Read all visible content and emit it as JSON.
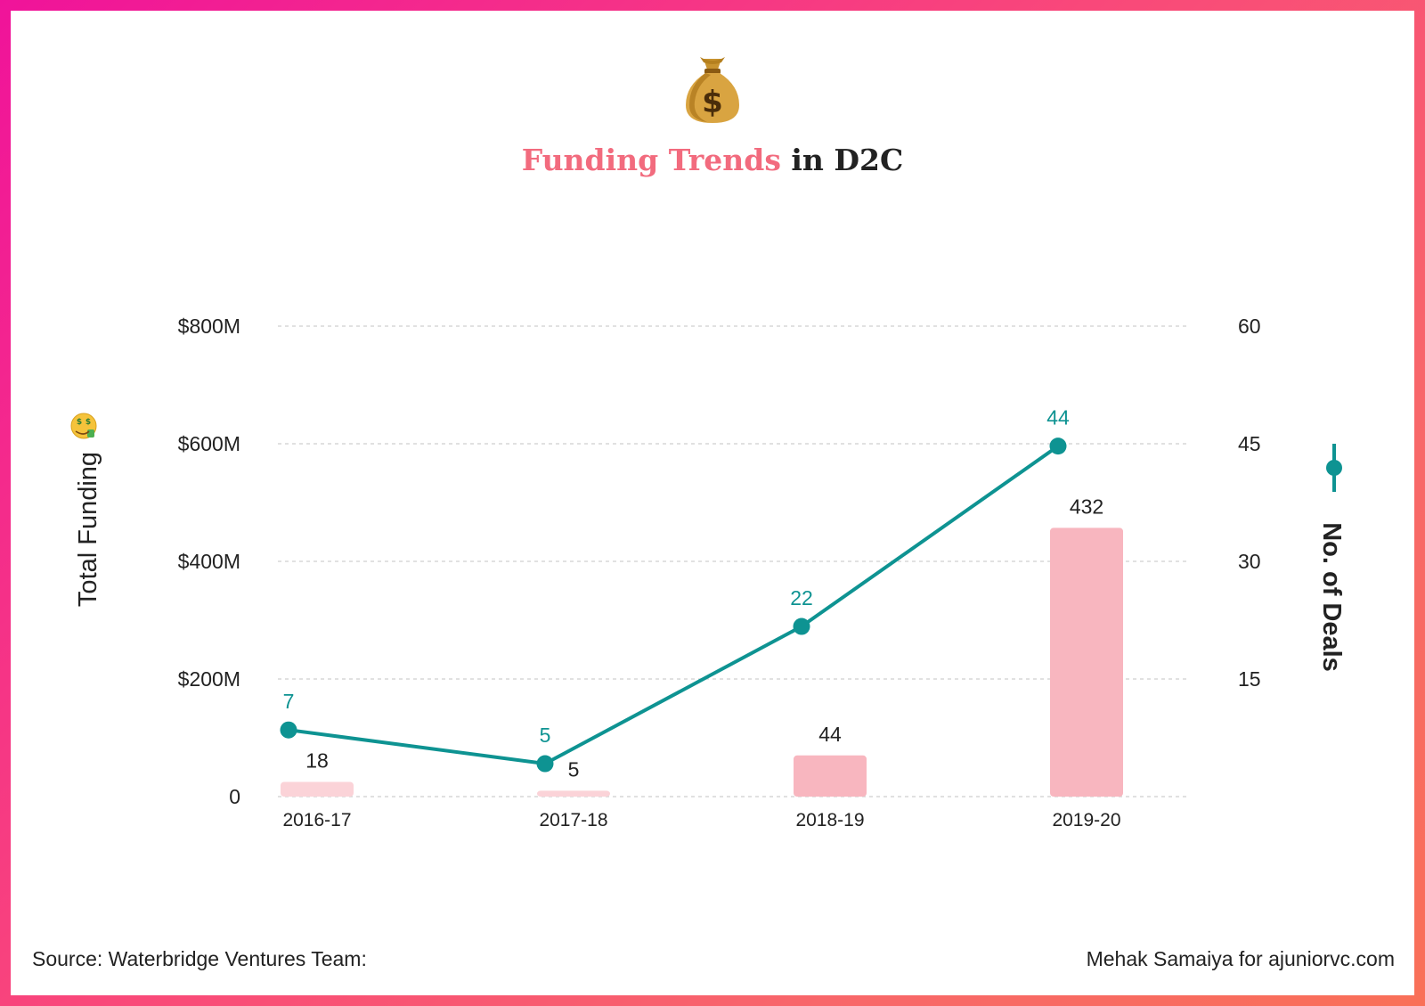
{
  "header": {
    "icon": "money-bag-icon",
    "title_highlight": "Funding Trends",
    "title_rest": " in D2C"
  },
  "colors": {
    "bar": "#f8b6bf",
    "bar_light": "#fbd3d8",
    "line": "#0e9392",
    "title_highlight": "#f26b7e"
  },
  "chart_data": {
    "type": "bar+line",
    "categories": [
      "2016-17",
      "2017-18",
      "2018-19",
      "2019-20"
    ],
    "series": [
      {
        "values": [
          18,
          5,
          44,
          432
        ],
        "labels": [
          "18",
          "5",
          "44",
          "432"
        ],
        "axis": "left",
        "chart": "bar"
      },
      {
        "name": "No. of Deals",
        "values": [
          7,
          5,
          22,
          44
        ],
        "labels": [
          "7",
          "5",
          "22",
          "44"
        ],
        "axis": "right",
        "chart": "line"
      }
    ],
    "bar_plotted_values_est": [
      25,
      10,
      70,
      457
    ],
    "line_plotted_values_est": [
      8.5,
      4.2,
      21.7,
      44.7
    ],
    "y_left": {
      "label": "Total Funding",
      "label_icon": "money-mouth-face-icon",
      "ticks": [
        "0",
        "$200M",
        "$400M",
        "$600M",
        "$800M"
      ],
      "range": [
        0,
        800
      ]
    },
    "y_right": {
      "label": "No. of Deals",
      "ticks": [
        "15",
        "30",
        "45",
        "60"
      ],
      "range": [
        0,
        60
      ]
    },
    "grid": true,
    "legend": {
      "position": "right",
      "entry": "No. of Deals"
    }
  },
  "footer": {
    "source": "Source: Waterbridge Ventures Team:",
    "credit": "Mehak Samaiya for ajuniorvc.com"
  }
}
